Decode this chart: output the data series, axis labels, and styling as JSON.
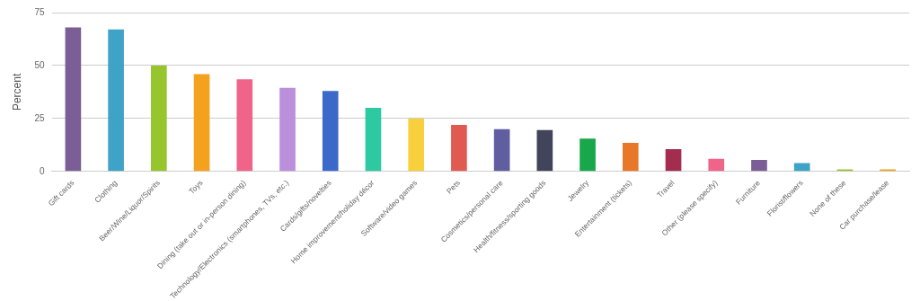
{
  "chart_data": {
    "type": "bar",
    "ylabel": "Percent",
    "categories": [
      "Gift cards",
      "Clothing",
      "Beer/Wine/Liquor/Spirits",
      "Toys",
      "Dining (take out or in-person dining)",
      "Technology/Electronics (smartphones, TVs, etc.)",
      "Cards/gifts/novelties",
      "Home improvement/holiday décor",
      "Software/video games",
      "Pets",
      "Cosmetics/personal care",
      "Health/fitness/sporting goods",
      "Jewelry",
      "Entertainment (tickets)",
      "Travel",
      "Other (please specify)",
      "Furniture",
      "Florist/flowers",
      "None of these",
      "Car purchase/lease"
    ],
    "values": [
      68,
      67,
      50,
      46,
      43.5,
      39.5,
      38,
      30,
      25,
      22,
      20,
      19.5,
      15.5,
      13.5,
      10.5,
      6,
      5.5,
      4,
      1,
      1
    ],
    "colors": [
      "#7b5e95",
      "#3ea3c6",
      "#96c52d",
      "#f4a11e",
      "#ef6488",
      "#bb8fdc",
      "#3b69c9",
      "#2dc9a0",
      "#f8d03d",
      "#e05a51",
      "#605ea0",
      "#41445a",
      "#18a74a",
      "#e77729",
      "#a42c4e",
      "#ef6488",
      "#7b5e95",
      "#3ea3c6",
      "#96c52d",
      "#f4a11e"
    ],
    "ylim": [
      0,
      75
    ],
    "yticks": [
      0,
      25,
      50,
      75
    ],
    "grid": "y",
    "legend": false
  }
}
